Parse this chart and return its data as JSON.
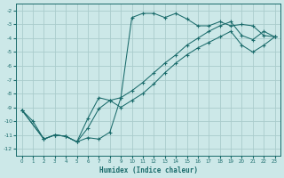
{
  "xlabel": "Humidex (Indice chaleur)",
  "bg_color": "#cce8e8",
  "grid_color": "#aacccc",
  "line_color": "#1a6b6b",
  "xlim": [
    -0.5,
    23.5
  ],
  "ylim": [
    -12.5,
    -1.5
  ],
  "yticks": [
    -12,
    -11,
    -10,
    -9,
    -8,
    -7,
    -6,
    -5,
    -4,
    -3,
    -2
  ],
  "xticks": [
    0,
    1,
    2,
    3,
    4,
    5,
    6,
    7,
    8,
    9,
    10,
    11,
    12,
    13,
    14,
    15,
    16,
    17,
    18,
    19,
    20,
    21,
    22,
    23
  ],
  "line1_x": [
    0,
    1,
    2,
    3,
    4,
    5,
    6,
    7,
    8,
    9,
    10,
    11,
    12,
    13,
    14,
    15,
    16,
    17,
    18,
    19,
    20,
    21,
    22,
    23
  ],
  "line1_y": [
    -9.2,
    -10.0,
    -11.3,
    -11.0,
    -11.1,
    -11.5,
    -11.2,
    -11.3,
    -10.8,
    -8.3,
    -2.5,
    -2.2,
    -2.2,
    -2.5,
    -2.2,
    -2.6,
    -3.1,
    -3.1,
    -2.8,
    -3.1,
    -3.0,
    -3.1,
    -3.8,
    -3.9
  ],
  "line2_x": [
    0,
    2,
    3,
    4,
    5,
    6,
    7,
    8,
    9,
    10,
    11,
    12,
    13,
    14,
    15,
    16,
    17,
    18,
    19,
    20,
    21,
    22,
    23
  ],
  "line2_y": [
    -9.2,
    -11.3,
    -11.0,
    -11.1,
    -11.5,
    -10.5,
    -9.1,
    -8.5,
    -8.3,
    -7.8,
    -7.2,
    -6.5,
    -5.8,
    -5.2,
    -4.5,
    -4.0,
    -3.5,
    -3.1,
    -2.8,
    -3.8,
    -4.1,
    -3.5,
    -3.9
  ],
  "line3_x": [
    0,
    2,
    3,
    4,
    5,
    6,
    7,
    8,
    9,
    10,
    11,
    12,
    13,
    14,
    15,
    16,
    17,
    18,
    19,
    20,
    21,
    22,
    23
  ],
  "line3_y": [
    -9.2,
    -11.3,
    -11.0,
    -11.1,
    -11.5,
    -9.8,
    -8.3,
    -8.5,
    -9.0,
    -8.5,
    -8.0,
    -7.3,
    -6.5,
    -5.8,
    -5.2,
    -4.7,
    -4.3,
    -3.9,
    -3.5,
    -4.5,
    -5.0,
    -4.5,
    -3.9
  ]
}
